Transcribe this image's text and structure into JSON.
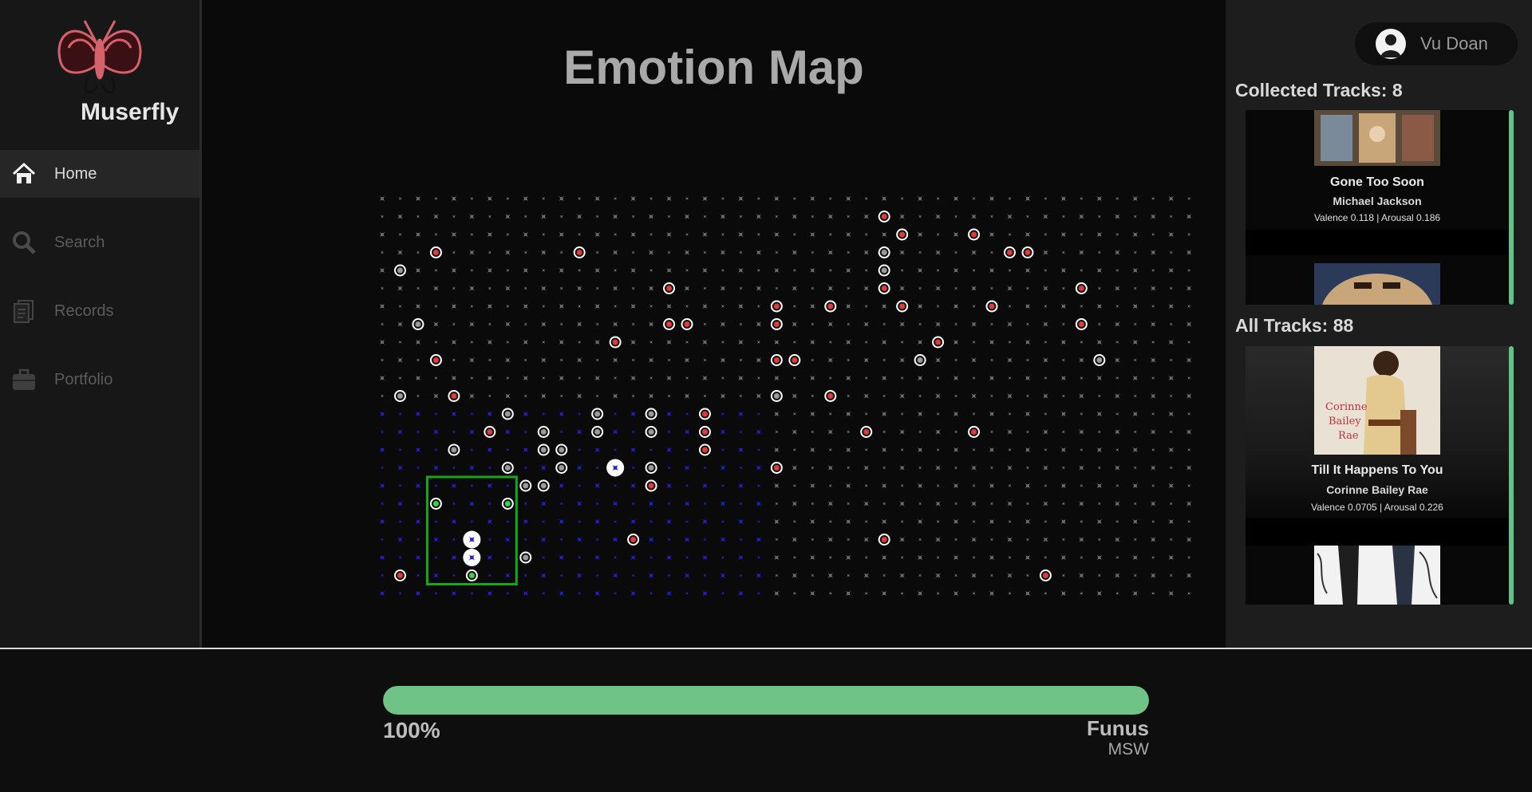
{
  "app": {
    "brand": "Muserfly",
    "logo_icon": "butterfly-icon",
    "accent": "#6fc386"
  },
  "sidebar": {
    "items": [
      {
        "label": "Home",
        "icon": "home-icon",
        "active": true
      },
      {
        "label": "Search",
        "icon": "search-icon",
        "active": false
      },
      {
        "label": "Records",
        "icon": "records-icon",
        "active": false
      },
      {
        "label": "Portfolio",
        "icon": "briefcase-icon",
        "active": false
      }
    ]
  },
  "main": {
    "title": "Emotion Map",
    "grid": {
      "columns": 46,
      "rows": 23,
      "marker_colors": {
        "default": "#6b6b6b",
        "collected": "#1f1fc8",
        "red": "#e23a3a",
        "gray": "#9a9a9a",
        "green": "#3bd24a"
      },
      "red_markers": [
        [
          28,
          1
        ],
        [
          29,
          2
        ],
        [
          33,
          2
        ],
        [
          3,
          3
        ],
        [
          11,
          3
        ],
        [
          35,
          3
        ],
        [
          36,
          3
        ],
        [
          16,
          5
        ],
        [
          28,
          5
        ],
        [
          39,
          5
        ],
        [
          22,
          6
        ],
        [
          25,
          6
        ],
        [
          29,
          6
        ],
        [
          34,
          6
        ],
        [
          16,
          7
        ],
        [
          17,
          7
        ],
        [
          22,
          7
        ],
        [
          39,
          7
        ],
        [
          13,
          8
        ],
        [
          31,
          8
        ],
        [
          3,
          9
        ],
        [
          22,
          9
        ],
        [
          23,
          9
        ],
        [
          4,
          11
        ],
        [
          25,
          11
        ],
        [
          18,
          12
        ],
        [
          6,
          13
        ],
        [
          18,
          13
        ],
        [
          27,
          13
        ],
        [
          33,
          13
        ],
        [
          18,
          14
        ],
        [
          22,
          15
        ],
        [
          15,
          16
        ],
        [
          14,
          19
        ],
        [
          28,
          19
        ],
        [
          1,
          21
        ],
        [
          37,
          21
        ]
      ],
      "gray_markers": [
        [
          28,
          3
        ],
        [
          1,
          4
        ],
        [
          28,
          4
        ],
        [
          2,
          7
        ],
        [
          30,
          9
        ],
        [
          40,
          9
        ],
        [
          1,
          11
        ],
        [
          22,
          11
        ],
        [
          7,
          12
        ],
        [
          12,
          12
        ],
        [
          15,
          12
        ],
        [
          9,
          13
        ],
        [
          12,
          13
        ],
        [
          15,
          13
        ],
        [
          4,
          14
        ],
        [
          9,
          14
        ],
        [
          10,
          14
        ],
        [
          7,
          15
        ],
        [
          10,
          15
        ],
        [
          15,
          15
        ],
        [
          8,
          16
        ],
        [
          9,
          16
        ],
        [
          8,
          20
        ]
      ],
      "green_markers": [
        [
          3,
          17
        ],
        [
          7,
          17
        ],
        [
          5,
          21
        ]
      ],
      "white_markers": [
        [
          13,
          15
        ],
        [
          5,
          19
        ],
        [
          5,
          20
        ]
      ],
      "selection_box": {
        "col_start": 3,
        "row_start": 16,
        "col_end": 7,
        "row_end": 21
      }
    }
  },
  "user": {
    "name": "Vu Doan",
    "avatar_icon": "user-icon"
  },
  "collected": {
    "title": "Collected Tracks: 8",
    "tracks": [
      {
        "title": "Gone Too Soon",
        "artist": "Michael Jackson",
        "meta": "Valence 0.118 | Arousal 0.186",
        "cover_icon": "album-cover"
      },
      {
        "title": "",
        "artist": "",
        "meta": "",
        "cover_icon": "album-cover"
      }
    ]
  },
  "all": {
    "title": "All Tracks: 88",
    "tracks": [
      {
        "title": "Till It Happens To You",
        "artist": "Corinne Bailey Rae",
        "meta": "Valence 0.0705 | Arousal 0.226",
        "cover_icon": "album-cover"
      },
      {
        "title": "",
        "artist": "",
        "meta": "",
        "cover_icon": "album-cover"
      }
    ]
  },
  "player": {
    "progress_percent": 100,
    "progress_label": "100%",
    "now_playing_title": "Funus",
    "now_playing_artist": "MSW"
  }
}
